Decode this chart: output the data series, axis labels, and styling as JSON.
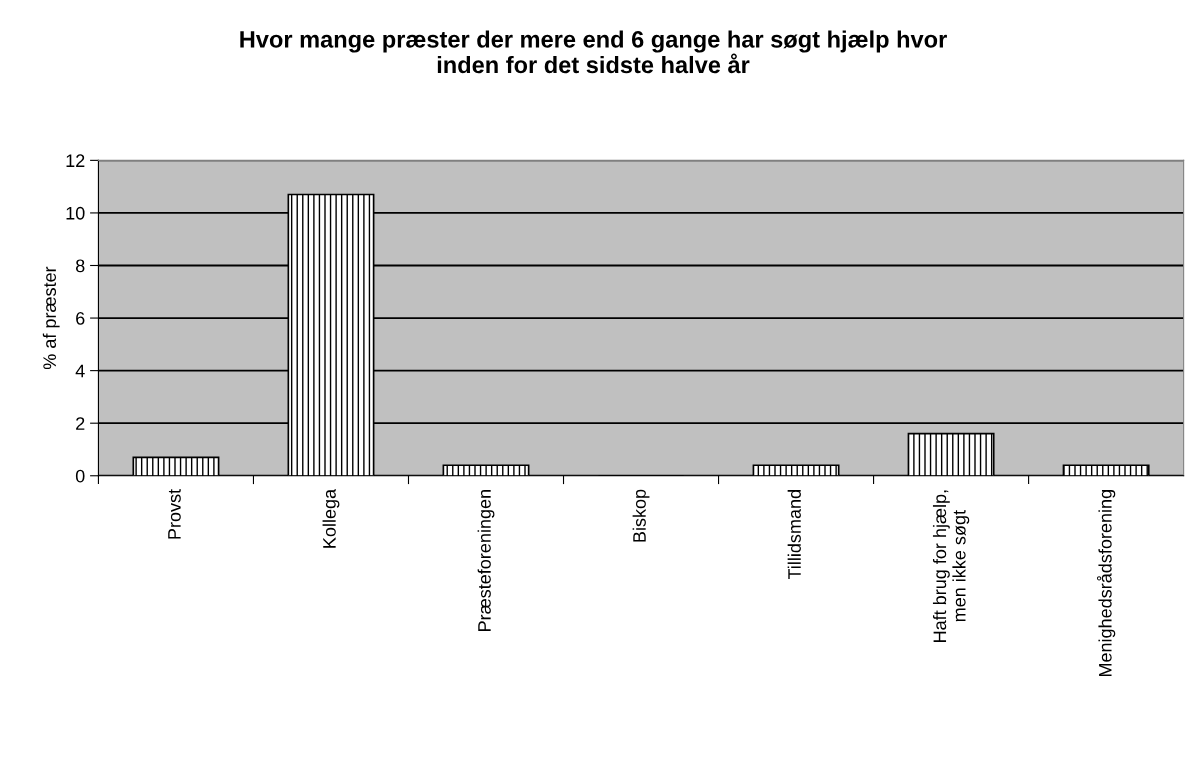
{
  "chart_data": {
    "type": "bar",
    "title": "Hvor mange præster der mere end 6 gange har søgt hjælp hvor\ninden for det sidste halve år",
    "ylabel": "% af præster",
    "categories": [
      "Provst",
      "Kollega",
      "Præsteforeningen",
      "Biskop",
      "Tillidsmand",
      "Haft brug for hjælp,\nmen ikke søgt",
      "Menighedsrådsforening"
    ],
    "values": [
      0.7,
      10.7,
      0.4,
      0,
      0.4,
      1.6,
      0.4
    ],
    "color": "#000000",
    "ylim": [
      0,
      12
    ],
    "yticks": [
      0,
      2,
      4,
      6,
      8,
      10,
      12
    ],
    "grid": "y"
  }
}
